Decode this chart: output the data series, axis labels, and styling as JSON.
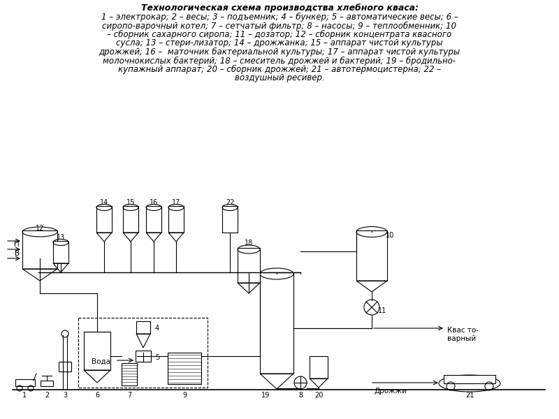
{
  "title_line1": "Технологическая схема производства хлебного кваса:",
  "legend_lines": [
    "1 – электрокар; 2 – весы; 3 – подъемник; 4 – бункер; 5 – автоматические весы; 6 –",
    "сиропо-варочный котел; 7 – сетчатый фильтр; 8 – насосы; 9 – теплообменник; 10",
    "– сборник сахарного сиропа; 11 – дозатор; 12 – сборник концентрата квасного",
    "сусла; 13 – стери-лизатор; 14 – дрожжанка; 15 – аппарат чистой культуры",
    "дрожжей; 16 –  маточник бактериальной культуры; 17 – аппарат чистой культуры",
    "молочнокислых бактерий; 18 – смеситель дрожжей и бактерий; 19 – бродильно-",
    "купажный аппарат; 20 – сборник дрожжей; 21 – автотермоцистерна; 22 –",
    "воздушный ресивер."
  ],
  "bg_color": "#ffffff",
  "line_color": "#000000",
  "text_color": "#000000",
  "font_size_title": 9,
  "font_size_legend": 8.5,
  "font_size_labels": 7.5
}
